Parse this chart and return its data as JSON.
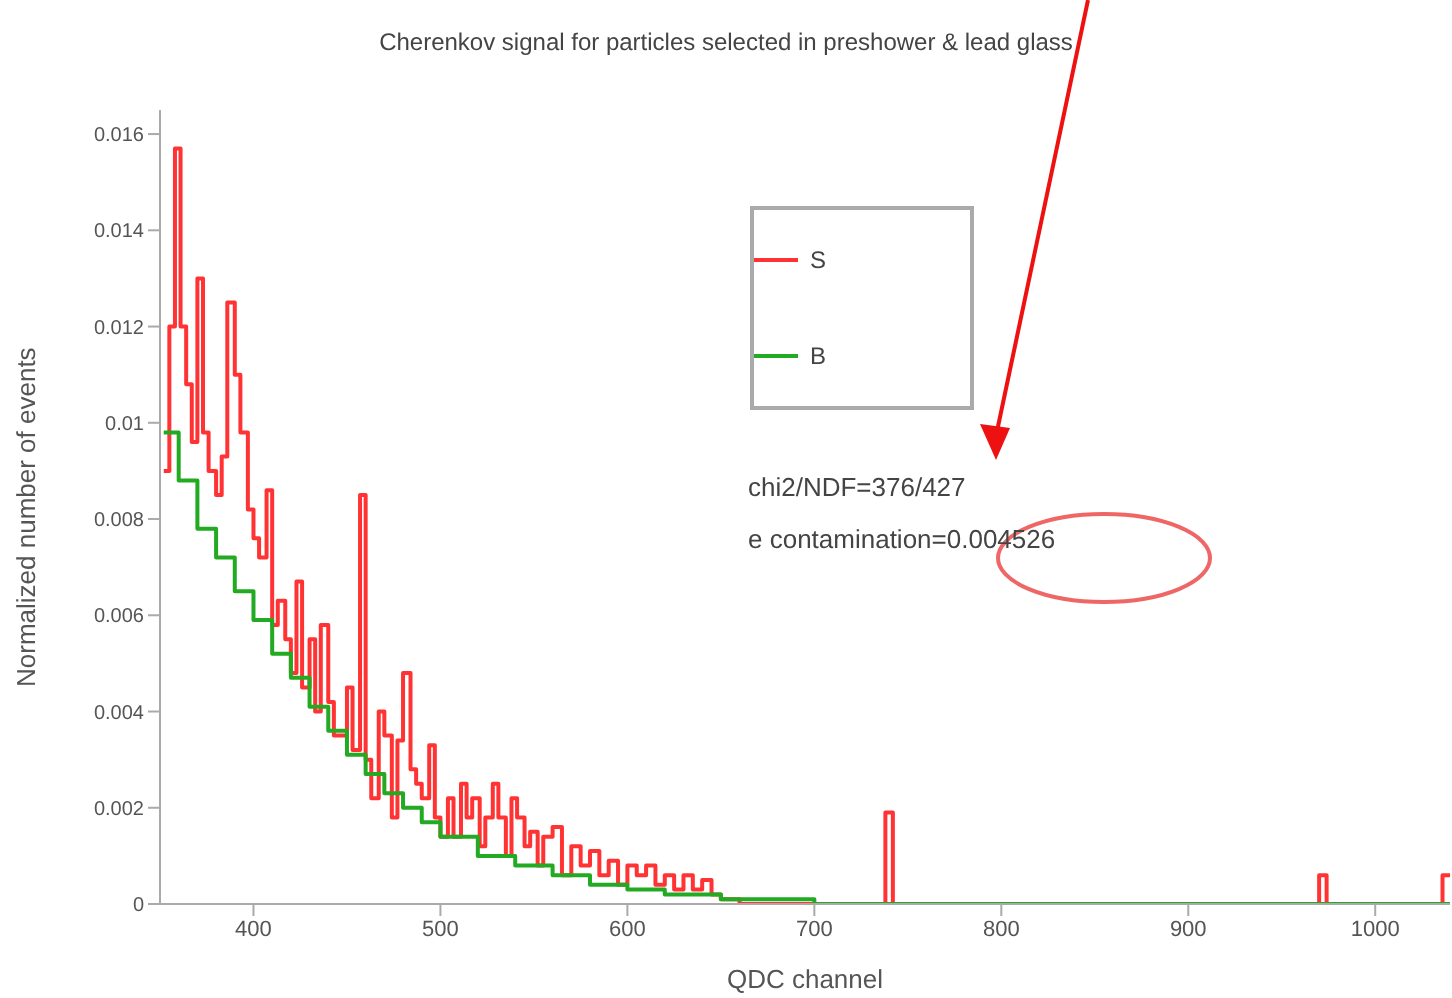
{
  "chart_data": {
    "type": "step",
    "title": "Cherenkov signal for particles selected in preshower & lead glass",
    "xlabel": "QDC channel",
    "ylabel": "Normalized number of events",
    "annotations": [
      "chi2/NDF=376/427",
      "e contamination=0.004526"
    ],
    "xlim": [
      350,
      1040
    ],
    "xticks": [
      400,
      500,
      600,
      700,
      800,
      900,
      1000
    ],
    "ylim": [
      0,
      0.0165
    ],
    "yticks": [
      0,
      0.002,
      0.004,
      0.006,
      0.008,
      0.01,
      0.012,
      0.014,
      0.016
    ],
    "grid": false,
    "legend": "top",
    "marker": "none",
    "line_style": "solid",
    "series": [
      {
        "name": "S",
        "color": "#ff3333",
        "x": [
          352,
          355,
          358,
          361,
          364,
          367,
          370,
          373,
          376,
          380,
          383,
          386,
          390,
          393,
          397,
          400,
          403,
          407,
          410,
          413,
          417,
          420,
          423,
          426,
          430,
          433,
          436,
          440,
          443,
          447,
          450,
          453,
          457,
          460,
          463,
          467,
          470,
          474,
          477,
          480,
          484,
          487,
          490,
          494,
          497,
          500,
          504,
          507,
          511,
          514,
          517,
          521,
          524,
          528,
          531,
          535,
          538,
          541,
          545,
          548,
          552,
          555,
          560,
          565,
          570,
          575,
          580,
          585,
          590,
          595,
          600,
          605,
          610,
          615,
          620,
          625,
          630,
          635,
          640,
          645,
          650,
          660,
          700,
          738,
          742,
          780,
          970,
          974,
          1036,
          1040
        ],
        "values": [
          0.009,
          0.012,
          0.0157,
          0.012,
          0.0108,
          0.0096,
          0.013,
          0.0098,
          0.009,
          0.0085,
          0.0093,
          0.0125,
          0.011,
          0.0098,
          0.0082,
          0.0076,
          0.0072,
          0.0086,
          0.0058,
          0.0063,
          0.0055,
          0.0048,
          0.0067,
          0.0045,
          0.0055,
          0.004,
          0.0058,
          0.0042,
          0.0035,
          0.0035,
          0.0045,
          0.0032,
          0.0085,
          0.003,
          0.0022,
          0.004,
          0.0035,
          0.0018,
          0.0034,
          0.0048,
          0.0028,
          0.0025,
          0.0022,
          0.0033,
          0.0018,
          0.0014,
          0.0022,
          0.0014,
          0.0025,
          0.0018,
          0.0022,
          0.0012,
          0.0018,
          0.0025,
          0.0018,
          0.001,
          0.0022,
          0.0018,
          0.0012,
          0.0015,
          0.0008,
          0.0014,
          0.0016,
          0.0006,
          0.0012,
          0.0008,
          0.0011,
          0.0006,
          0.0009,
          0.0004,
          0.0008,
          0.0006,
          0.0008,
          0.0004,
          0.0006,
          0.0003,
          0.0006,
          0.0003,
          0.0005,
          0.0002,
          0.0001,
          0,
          0,
          0.0019,
          0,
          0,
          0.0006,
          0,
          0.0006,
          0.0006
        ]
      },
      {
        "name": "B",
        "color": "#22aa22",
        "x": [
          352,
          360,
          370,
          380,
          390,
          400,
          410,
          420,
          430,
          440,
          450,
          460,
          470,
          480,
          490,
          500,
          520,
          540,
          560,
          580,
          600,
          620,
          650,
          700,
          750,
          1040
        ],
        "values": [
          0.0098,
          0.0088,
          0.0078,
          0.0072,
          0.0065,
          0.0059,
          0.0052,
          0.0047,
          0.0041,
          0.0036,
          0.0031,
          0.0027,
          0.0023,
          0.002,
          0.0017,
          0.0014,
          0.001,
          0.0008,
          0.0006,
          0.0004,
          0.0003,
          0.0002,
          0.0001,
          0,
          0,
          0
        ]
      }
    ]
  }
}
